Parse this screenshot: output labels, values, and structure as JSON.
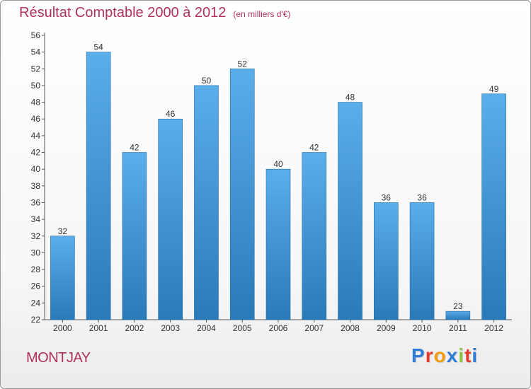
{
  "header": {
    "title": "Résultat Comptable 2000 à 2012",
    "subtitle": "(en milliers d'€)"
  },
  "footer": {
    "location": "MONTJAY",
    "logo_letters": [
      "P",
      "r",
      "o",
      "x",
      "i",
      "t",
      "i"
    ],
    "logo_colors": [
      "#2e7dd7",
      "#e63c2f",
      "#f39c12",
      "#2e7dd7",
      "#8cc63f",
      "#e63c2f",
      "#2e7dd7"
    ]
  },
  "colors": {
    "bar_light": "#5aaeea",
    "bar_dark": "#2a7ab8",
    "bar_border": "#1f6aa5",
    "title": "#b03060"
  },
  "chart_data": {
    "type": "bar",
    "title": "Résultat Comptable 2000 à 2012",
    "subtitle": "(en milliers d'€)",
    "xlabel": "",
    "ylabel": "",
    "categories": [
      "2000",
      "2001",
      "2002",
      "2003",
      "2004",
      "2005",
      "2006",
      "2007",
      "2008",
      "2009",
      "2010",
      "2011",
      "2012"
    ],
    "values": [
      32,
      54,
      42,
      46,
      50,
      52,
      40,
      42,
      48,
      36,
      36,
      23,
      49
    ],
    "ylim": [
      22,
      56
    ],
    "yticks": [
      22,
      24,
      26,
      28,
      30,
      32,
      34,
      36,
      38,
      40,
      42,
      44,
      46,
      48,
      50,
      52,
      54,
      56
    ],
    "grid": false,
    "legend": "none"
  }
}
